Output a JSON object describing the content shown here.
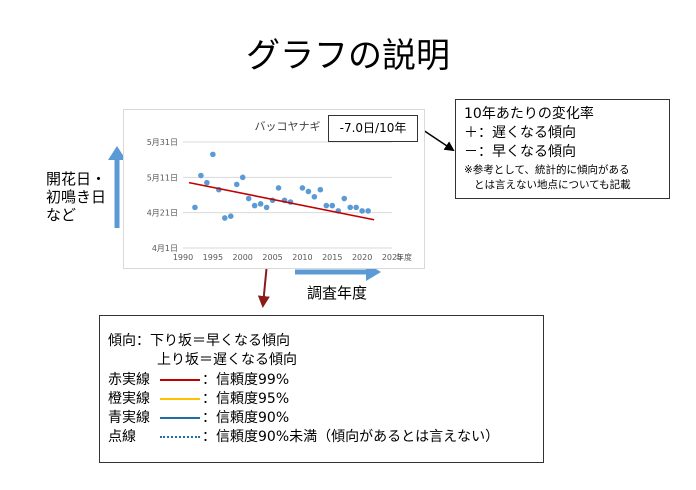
{
  "title": "グラフの説明",
  "side_label": [
    "開花日・",
    "初鳴き日",
    "など"
  ],
  "x_axis_caption": "調査年度",
  "rate_badge": "-7.0日/10年",
  "info_box": {
    "line1": "10年あたりの変化率",
    "line2": "＋：遅くなる傾向",
    "line3": "－：早くなる傾向",
    "note1": "※参考として、統計的に傾向がある",
    "note2": "とは言えない地点についても記載"
  },
  "legend": {
    "row1": "傾向：下り坂＝早くなる傾向",
    "row2": "上り坂＝遅くなる傾向",
    "items": [
      {
        "label": "赤実線",
        "desc": "：信頼度99%",
        "color": "#c00000",
        "style": "solid"
      },
      {
        "label": "橙実線",
        "desc": "：信頼度95%",
        "color": "#ffc000",
        "style": "solid"
      },
      {
        "label": "青実線",
        "desc": "：信頼度90%",
        "color": "#1f6fa6",
        "style": "solid"
      },
      {
        "label": "点線",
        "desc": "：信頼度90%未満（傾向があるとは言えない）",
        "color": "#1f6fa6",
        "style": "dotted"
      }
    ]
  },
  "colors": {
    "arrow_blue": "#5b9bd5",
    "dot_blue": "#5b9bd5",
    "trend_red": "#c00000",
    "dark_red": "#8b1a1a"
  },
  "chart_data": {
    "type": "scatter",
    "title": "バッコヤナギ",
    "xlabel": "年度",
    "ylabel": "",
    "x_ticks": [
      1990,
      1995,
      2000,
      2005,
      2010,
      2015,
      2020,
      2025
    ],
    "y_ticks": [
      "4月1日",
      "4月21日",
      "5月11日",
      "5月31日"
    ],
    "y_tick_days": [
      0,
      20,
      40,
      60
    ],
    "xlim": [
      1990,
      2025
    ],
    "ylim": [
      0,
      60
    ],
    "grid": true,
    "points": [
      [
        1992,
        23
      ],
      [
        1993,
        41
      ],
      [
        1994,
        37
      ],
      [
        1995,
        53
      ],
      [
        1996,
        33
      ],
      [
        1997,
        17
      ],
      [
        1998,
        18
      ],
      [
        1999,
        36
      ],
      [
        2000,
        40
      ],
      [
        2001,
        28
      ],
      [
        2002,
        24
      ],
      [
        2003,
        25
      ],
      [
        2004,
        23
      ],
      [
        2005,
        27
      ],
      [
        2006,
        34
      ],
      [
        2007,
        27
      ],
      [
        2008,
        26
      ],
      [
        2010,
        34
      ],
      [
        2011,
        32
      ],
      [
        2012,
        29
      ],
      [
        2013,
        33
      ],
      [
        2014,
        24
      ],
      [
        2015,
        24
      ],
      [
        2016,
        21
      ],
      [
        2017,
        28
      ],
      [
        2018,
        23
      ],
      [
        2019,
        23
      ],
      [
        2020,
        21
      ],
      [
        2021,
        21
      ]
    ],
    "trend": [
      [
        1991,
        37
      ],
      [
        2022,
        16
      ]
    ],
    "trend_color": "#c00000"
  }
}
